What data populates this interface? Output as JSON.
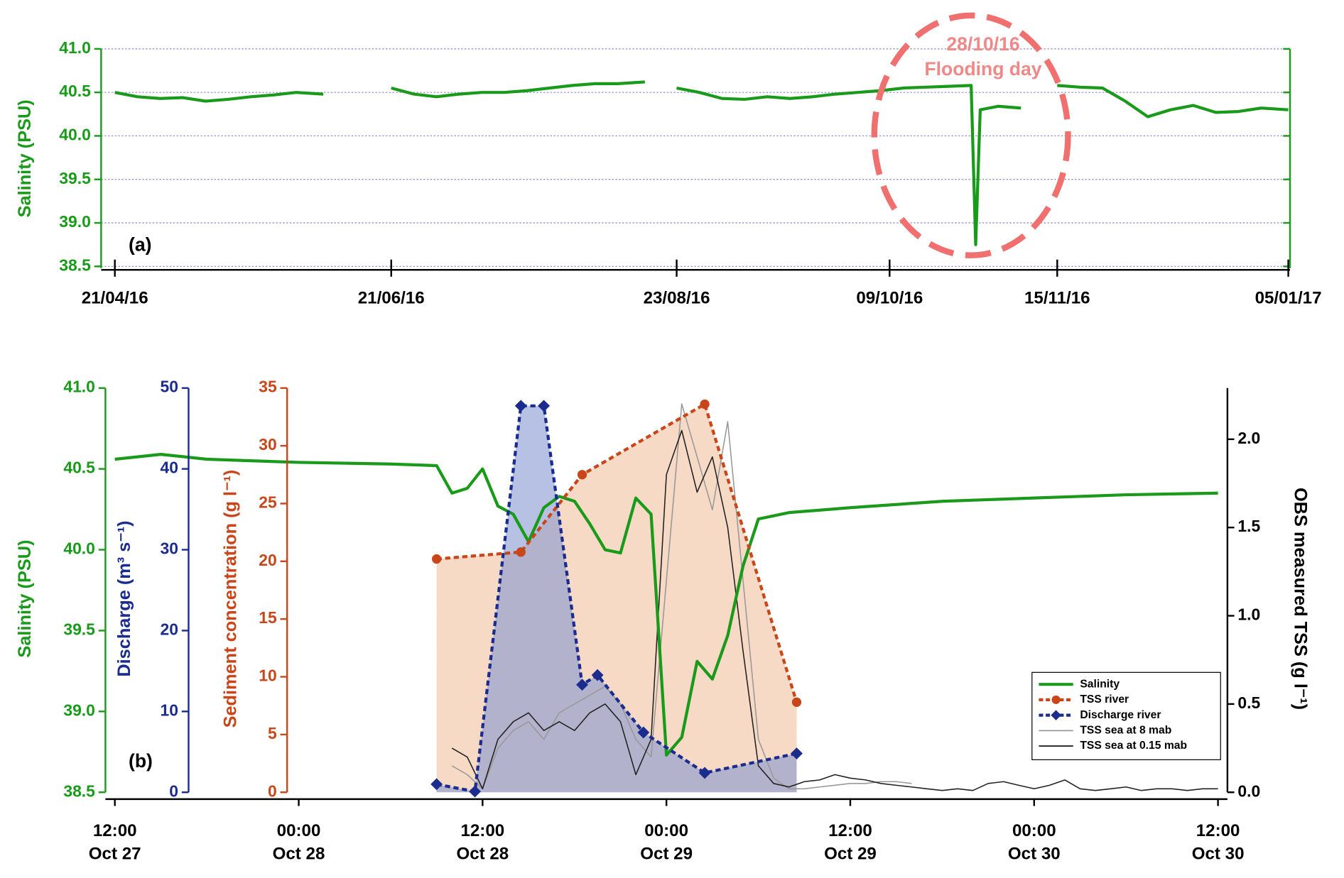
{
  "chart_data": [
    {
      "type": "line",
      "annotations": [
        "(a)",
        "28/10/16",
        "Flooding day"
      ],
      "ylabel": "Salinity (PSU)",
      "ylim": [
        38.48,
        41.0
      ],
      "yticks": [
        38.5,
        {
          "value": 39.0,
          "label": "39.0"
        },
        39.5,
        {
          "value": 40.0,
          "label": "40.0"
        },
        40.5,
        {
          "value": 41.0,
          "label": "41.0"
        }
      ],
      "grid": true,
      "xlim": [
        "2016-04-21",
        "2017-01-05"
      ],
      "xticks": [
        {
          "value": "2016-04-21",
          "label": "21/04/16"
        },
        {
          "value": "2016-06-21",
          "label": "21/06/16"
        },
        {
          "value": "2016-08-23",
          "label": "23/08/16"
        },
        {
          "value": "2016-10-09",
          "label": "09/10/16"
        },
        {
          "value": "2016-11-15",
          "label": "15/11/16"
        },
        {
          "value": "2017-01-05",
          "label": "05/01/17"
        }
      ],
      "series": [
        {
          "color": "#1a9a1a",
          "x": [
            "2016-04-21",
            "2016-04-26",
            "2016-05-01",
            "2016-05-06",
            "2016-05-11",
            "2016-05-16",
            "2016-05-21",
            "2016-05-26",
            "2016-05-31",
            "2016-06-06",
            "2016-06-13",
            "2016-06-21",
            "2016-06-26",
            "2016-07-01",
            "2016-07-06",
            "2016-07-11",
            "2016-07-16",
            "2016-07-21",
            "2016-07-26",
            "2016-07-31",
            "2016-08-05",
            "2016-08-10",
            "2016-08-16",
            "2016-08-19",
            "2016-08-23",
            "2016-08-28",
            "2016-09-02",
            "2016-09-07",
            "2016-09-12",
            "2016-09-17",
            "2016-09-22",
            "2016-09-27",
            "2016-10-02",
            "2016-10-07",
            "2016-10-12",
            "2016-10-17",
            "2016-10-22",
            "2016-10-27",
            "2016-10-28",
            "2016-10-29",
            "2016-11-02",
            "2016-11-07",
            "2016-11-11",
            "2016-11-15",
            "2016-11-20",
            "2016-11-25",
            "2016-11-30",
            "2016-12-05",
            "2016-12-10",
            "2016-12-15",
            "2016-12-20",
            "2016-12-25",
            "2016-12-30",
            "2017-01-05"
          ],
          "values": [
            40.5,
            40.45,
            40.43,
            40.44,
            40.4,
            40.42,
            40.45,
            40.47,
            40.5,
            40.48,
            null,
            40.55,
            40.48,
            40.45,
            40.48,
            40.5,
            40.5,
            40.52,
            40.55,
            40.58,
            40.6,
            40.6,
            40.62,
            null,
            40.55,
            40.5,
            40.43,
            40.42,
            40.45,
            40.43,
            40.45,
            40.48,
            40.5,
            40.52,
            40.55,
            40.56,
            40.57,
            40.58,
            38.75,
            40.3,
            40.34,
            40.32,
            null,
            40.58,
            40.56,
            40.55,
            40.4,
            40.22,
            40.3,
            40.35,
            40.27,
            40.28,
            40.32,
            40.3
          ]
        }
      ]
    },
    {
      "type": "line",
      "annotations": [
        "(b)"
      ],
      "legend": "lower right",
      "xlim": [
        "Oct 27 12:00",
        "Oct 30 12:00"
      ],
      "xticks": [
        {
          "value": "Oct 27 12:00",
          "label": [
            "12:00",
            "Oct 27"
          ]
        },
        {
          "value": "Oct 28 00:00",
          "label": [
            "00:00",
            "Oct 28"
          ]
        },
        {
          "value": "Oct 28 12:00",
          "label": [
            "12:00",
            "Oct 28"
          ]
        },
        {
          "value": "Oct 29 00:00",
          "label": [
            "00:00",
            "Oct 29"
          ]
        },
        {
          "value": "Oct 29 12:00",
          "label": [
            "12:00",
            "Oct 29"
          ]
        },
        {
          "value": "Oct 30 00:00",
          "label": [
            "00:00",
            "Oct 30"
          ]
        },
        {
          "value": "Oct 30 12:00",
          "label": [
            "12:00",
            "Oct 30"
          ]
        }
      ],
      "ylabel": "Salinity (PSU)",
      "ylim": [
        38.5,
        41.0
      ],
      "yticks": [
        38.5,
        {
          "value": 39.0,
          "label": "39.0"
        },
        39.5,
        {
          "value": 40.0,
          "label": "40.0"
        },
        40.5,
        {
          "value": 41.0,
          "label": "41.0"
        }
      ],
      "y2label": "Discharge (m³ s⁻¹)",
      "y2lim": [
        0,
        50
      ],
      "y2ticks": [
        0,
        10,
        20,
        30,
        40,
        50
      ],
      "y3label": "Sediment concentration (g l⁻¹)",
      "y3lim": [
        0,
        35
      ],
      "y3ticks": [
        0,
        5,
        10,
        15,
        20,
        25,
        30,
        35
      ],
      "y4label": "OBS measured TSS (g l⁻¹)",
      "y4lim": [
        0,
        2.29
      ],
      "y4ticks": [
        {
          "value": 0.0,
          "label": "0.0"
        },
        0.5,
        {
          "value": 1.0,
          "label": "1.0"
        },
        1.5,
        {
          "value": 2.0,
          "label": "2.0"
        }
      ],
      "axis_colors": {
        "y": "#1a9a1a",
        "y2": "#1a2d8f",
        "y3": "#c8461a",
        "y4": "#000000"
      },
      "series": [
        {
          "name": "Salinity",
          "color": "#1a9a1a",
          "axis": "y",
          "x": [
            "Oct 27 12:00",
            "Oct 27 15:00",
            "Oct 27 18:00",
            "Oct 28 00:00",
            "Oct 28 06:00",
            "Oct 28 09:00",
            "Oct 28 10:00",
            "Oct 28 11:00",
            "Oct 28 12:00",
            "Oct 28 13:00",
            "Oct 28 14:00",
            "Oct 28 15:00",
            "Oct 28 16:00",
            "Oct 28 17:00",
            "Oct 28 18:00",
            "Oct 28 19:00",
            "Oct 28 20:00",
            "Oct 28 21:00",
            "Oct 28 22:00",
            "Oct 28 23:00",
            "Oct 29 00:00",
            "Oct 29 01:00",
            "Oct 29 02:00",
            "Oct 29 03:00",
            "Oct 29 04:00",
            "Oct 29 05:00",
            "Oct 29 06:00",
            "Oct 29 08:00",
            "Oct 29 12:00",
            "Oct 29 18:00",
            "Oct 30 00:00",
            "Oct 30 06:00",
            "Oct 30 12:00"
          ],
          "values": [
            40.56,
            40.59,
            40.56,
            40.54,
            40.53,
            40.52,
            40.35,
            40.38,
            40.5,
            40.27,
            40.22,
            40.05,
            40.26,
            40.33,
            40.3,
            40.16,
            40.0,
            39.98,
            40.32,
            40.22,
            38.73,
            38.84,
            39.31,
            39.2,
            39.47,
            39.9,
            40.19,
            40.23,
            40.26,
            40.3,
            40.32,
            40.34,
            40.35
          ]
        },
        {
          "name": "TSS river",
          "color": "#c8461a",
          "axis": "y3",
          "marker": "circle",
          "dash": true,
          "area_color": "#f4cdb3",
          "x": [
            "Oct 28 09:00",
            "Oct 28 14:30",
            "Oct 28 18:30",
            "Oct 29 02:30",
            "Oct 29 08:30"
          ],
          "values": [
            20.2,
            20.8,
            27.5,
            33.6,
            7.8
          ]
        },
        {
          "name": "Discharge river",
          "color": "#1a2d8f",
          "axis": "y2",
          "marker": "diamond",
          "dash": true,
          "area_color": "#8597d0",
          "x": [
            "Oct 28 09:00",
            "Oct 28 11:30",
            "Oct 28 14:30",
            "Oct 28 16:00",
            "Oct 28 18:30",
            "Oct 28 19:30",
            "Oct 28 22:30",
            "Oct 29 02:30",
            "Oct 29 08:30"
          ],
          "values": [
            1.0,
            0.1,
            47.8,
            47.8,
            13.3,
            14.5,
            7.4,
            2.4,
            4.8
          ]
        },
        {
          "name": "TSS sea at 8 mab",
          "color": "#999999",
          "axis": "y4",
          "x": [
            "Oct 28 10:00",
            "Oct 28 11:00",
            "Oct 28 12:00",
            "Oct 28 13:00",
            "Oct 28 14:00",
            "Oct 28 15:00",
            "Oct 28 16:00",
            "Oct 28 17:00",
            "Oct 28 18:00",
            "Oct 28 19:00",
            "Oct 28 20:00",
            "Oct 28 21:00",
            "Oct 28 22:00",
            "Oct 28 23:00",
            "Oct 29 00:00",
            "Oct 29 01:00",
            "Oct 29 02:00",
            "Oct 29 03:00",
            "Oct 29 04:00",
            "Oct 29 05:00",
            "Oct 29 06:00",
            "Oct 29 07:00",
            "Oct 29 08:00",
            "Oct 29 09:00",
            "Oct 29 10:00",
            "Oct 29 11:00",
            "Oct 29 12:00",
            "Oct 29 13:00",
            "Oct 29 14:00",
            "Oct 29 15:00",
            "Oct 29 16:00",
            "Oct 29 17:00",
            "Oct 29 18:00",
            "Oct 29 19:00",
            "Oct 29 20:00",
            "Oct 29 21:00",
            "Oct 29 22:00",
            "Oct 29 23:00",
            "Oct 30 00:00",
            "Oct 30 01:00",
            "Oct 30 02:00",
            "Oct 30 03:00",
            "Oct 30 04:00",
            "Oct 30 05:00",
            "Oct 30 06:00",
            "Oct 30 07:00",
            "Oct 30 08:00",
            "Oct 30 09:00",
            "Oct 30 10:00",
            "Oct 30 11:00",
            "Oct 30 12:00"
          ],
          "values": [
            0.15,
            0.1,
            0.02,
            0.25,
            0.35,
            0.4,
            0.3,
            0.45,
            0.5,
            0.55,
            0.6,
            0.5,
            0.3,
            0.2,
            1.2,
            2.2,
            1.9,
            1.6,
            2.1,
            1.2,
            0.3,
            0.08,
            0.02,
            0.02,
            0.03,
            0.04,
            0.05,
            0.05,
            0.06,
            0.06,
            0.05,
            null,
            null,
            null,
            null,
            null,
            null,
            null,
            null,
            null,
            null,
            null,
            null,
            null,
            null,
            null,
            null,
            null,
            null,
            null,
            null
          ]
        },
        {
          "name": "TSS sea at 0.15 mab",
          "color": "#222222",
          "axis": "y4",
          "x": [
            "Oct 28 10:00",
            "Oct 28 11:00",
            "Oct 28 12:00",
            "Oct 28 13:00",
            "Oct 28 14:00",
            "Oct 28 15:00",
            "Oct 28 16:00",
            "Oct 28 17:00",
            "Oct 28 18:00",
            "Oct 28 19:00",
            "Oct 28 20:00",
            "Oct 28 21:00",
            "Oct 28 22:00",
            "Oct 28 23:00",
            "Oct 29 00:00",
            "Oct 29 01:00",
            "Oct 29 02:00",
            "Oct 29 03:00",
            "Oct 29 04:00",
            "Oct 29 05:00",
            "Oct 29 06:00",
            "Oct 29 07:00",
            "Oct 29 08:00",
            "Oct 29 09:00",
            "Oct 29 10:00",
            "Oct 29 11:00",
            "Oct 29 12:00",
            "Oct 29 13:00",
            "Oct 29 14:00",
            "Oct 29 15:00",
            "Oct 29 16:00",
            "Oct 29 17:00",
            "Oct 29 18:00",
            "Oct 29 19:00",
            "Oct 29 20:00",
            "Oct 29 21:00",
            "Oct 29 22:00",
            "Oct 29 23:00",
            "Oct 30 00:00",
            "Oct 30 01:00",
            "Oct 30 02:00",
            "Oct 30 03:00",
            "Oct 30 04:00",
            "Oct 30 05:00",
            "Oct 30 06:00",
            "Oct 30 07:00",
            "Oct 30 08:00",
            "Oct 30 09:00",
            "Oct 30 10:00",
            "Oct 30 11:00",
            "Oct 30 12:00"
          ],
          "values": [
            0.25,
            0.2,
            0.02,
            0.3,
            0.4,
            0.45,
            0.35,
            0.4,
            0.35,
            0.45,
            0.5,
            0.4,
            0.1,
            0.3,
            1.8,
            2.05,
            1.7,
            1.9,
            1.5,
            0.8,
            0.15,
            0.05,
            0.03,
            0.06,
            0.07,
            0.1,
            0.08,
            0.07,
            0.05,
            0.04,
            0.03,
            0.02,
            0.01,
            0.02,
            0.01,
            0.05,
            0.06,
            0.04,
            0.02,
            0.04,
            0.07,
            0.02,
            0.01,
            0.02,
            0.03,
            0.01,
            0.02,
            0.02,
            0.01,
            0.02,
            0.02
          ]
        }
      ]
    }
  ]
}
